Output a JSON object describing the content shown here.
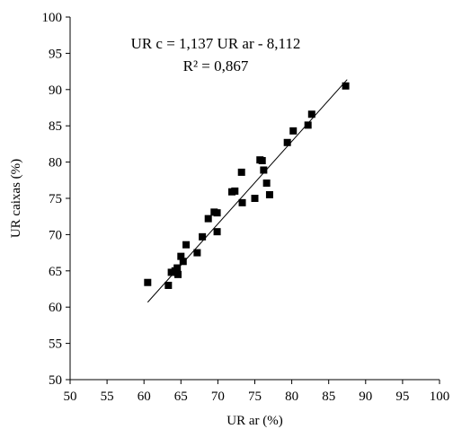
{
  "chart_data": {
    "type": "scatter",
    "xlabel": "UR ar (%)",
    "ylabel": "UR caixas (%)",
    "xlim": [
      50,
      100
    ],
    "ylim": [
      50,
      100
    ],
    "x_ticks": [
      "50",
      "55",
      "60",
      "65",
      "70",
      "75",
      "80",
      "85",
      "90",
      "95",
      "100"
    ],
    "y_ticks": [
      "50",
      "55",
      "60",
      "65",
      "70",
      "75",
      "80",
      "85",
      "90",
      "95",
      "100"
    ],
    "grid": false,
    "marker_color": "#000000",
    "series": [
      {
        "marker": "square",
        "points": [
          [
            60.5,
            63.4
          ],
          [
            63.3,
            63.0
          ],
          [
            63.7,
            64.8
          ],
          [
            64.2,
            65.0
          ],
          [
            64.6,
            64.5
          ],
          [
            64.5,
            65.4
          ],
          [
            65.0,
            67.0
          ],
          [
            65.3,
            66.3
          ],
          [
            65.7,
            68.6
          ],
          [
            67.2,
            67.5
          ],
          [
            67.9,
            69.7
          ],
          [
            68.7,
            72.2
          ],
          [
            69.5,
            73.1
          ],
          [
            69.9,
            73.0
          ],
          [
            69.9,
            70.4
          ],
          [
            71.9,
            75.9
          ],
          [
            72.3,
            76.0
          ],
          [
            73.2,
            78.6
          ],
          [
            73.3,
            74.4
          ],
          [
            75.0,
            75.0
          ],
          [
            75.7,
            80.3
          ],
          [
            76.0,
            80.2
          ],
          [
            76.2,
            78.9
          ],
          [
            76.6,
            77.1
          ],
          [
            77.0,
            75.5
          ],
          [
            79.4,
            82.7
          ],
          [
            80.2,
            84.3
          ],
          [
            82.2,
            85.1
          ],
          [
            82.7,
            86.6
          ],
          [
            87.3,
            90.5
          ]
        ]
      }
    ],
    "trendline": {
      "slope": 1.137,
      "intercept": -8.112,
      "x_range": [
        60.5,
        87.5
      ]
    },
    "annotations": {
      "equation": "UR c = 1,137 UR ar - 8,112",
      "r_squared": "R² = 0,867"
    }
  }
}
